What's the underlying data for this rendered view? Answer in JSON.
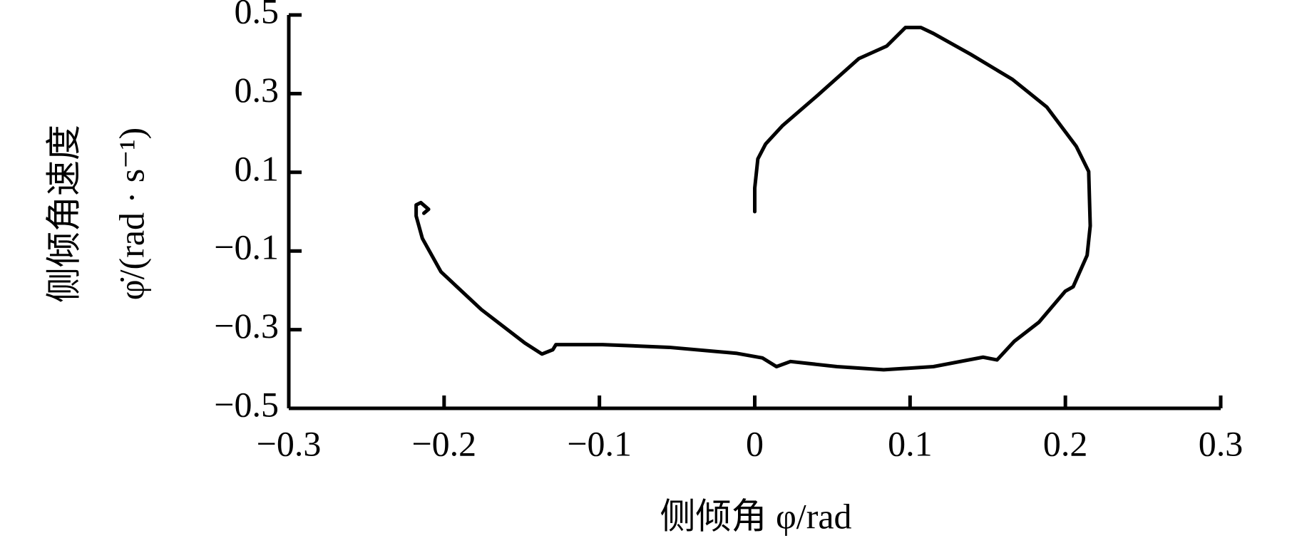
{
  "chart_data": {
    "type": "line",
    "xlabel": "侧倾角 φ/rad",
    "ylabel": [
      "侧倾角速度",
      "φ̇/(rad · s⁻¹)"
    ],
    "xlim": [
      -0.3,
      0.3
    ],
    "ylim": [
      -0.5,
      0.5
    ],
    "xticks": [
      {
        "value": -0.3,
        "label": "−0.3"
      },
      {
        "value": -0.2,
        "label": "−0.2"
      },
      {
        "value": -0.1,
        "label": "−0.1"
      },
      0,
      0.1,
      0.2,
      0.3
    ],
    "yticks": [
      {
        "value": -0.5,
        "label": "−0.5"
      },
      {
        "value": -0.3,
        "label": "−0.3"
      },
      {
        "value": -0.1,
        "label": "−0.1"
      },
      0.1,
      0.3,
      0.5
    ],
    "grid": false,
    "series": [
      {
        "color": "#000000",
        "x": [
          0,
          0,
          0.002,
          0.007,
          0.018,
          0.04,
          0.067,
          0.085,
          0.097,
          0.107,
          0.115,
          0.139,
          0.166,
          0.188,
          0.207,
          0.215,
          0.216,
          0.214,
          0.205,
          0.2,
          0.183,
          0.167,
          0.156,
          0.147,
          0.115,
          0.083,
          0.053,
          0.023,
          0.014,
          0.005,
          -0.012,
          -0.055,
          -0.098,
          -0.128,
          -0.13,
          -0.137,
          -0.148,
          -0.176,
          -0.202,
          -0.214,
          -0.218,
          -0.218,
          -0.215,
          -0.21,
          -0.213
        ],
        "values": [
          0,
          0.06,
          0.134,
          0.172,
          0.219,
          0.294,
          0.389,
          0.421,
          0.468,
          0.468,
          0.453,
          0.4,
          0.336,
          0.266,
          0.166,
          0.102,
          -0.036,
          -0.111,
          -0.191,
          -0.202,
          -0.281,
          -0.33,
          -0.377,
          -0.37,
          -0.394,
          -0.402,
          -0.394,
          -0.381,
          -0.394,
          -0.372,
          -0.36,
          -0.345,
          -0.338,
          -0.338,
          -0.351,
          -0.362,
          -0.334,
          -0.249,
          -0.153,
          -0.068,
          -0.011,
          0.017,
          0.023,
          0.006,
          -0.004
        ]
      }
    ]
  }
}
